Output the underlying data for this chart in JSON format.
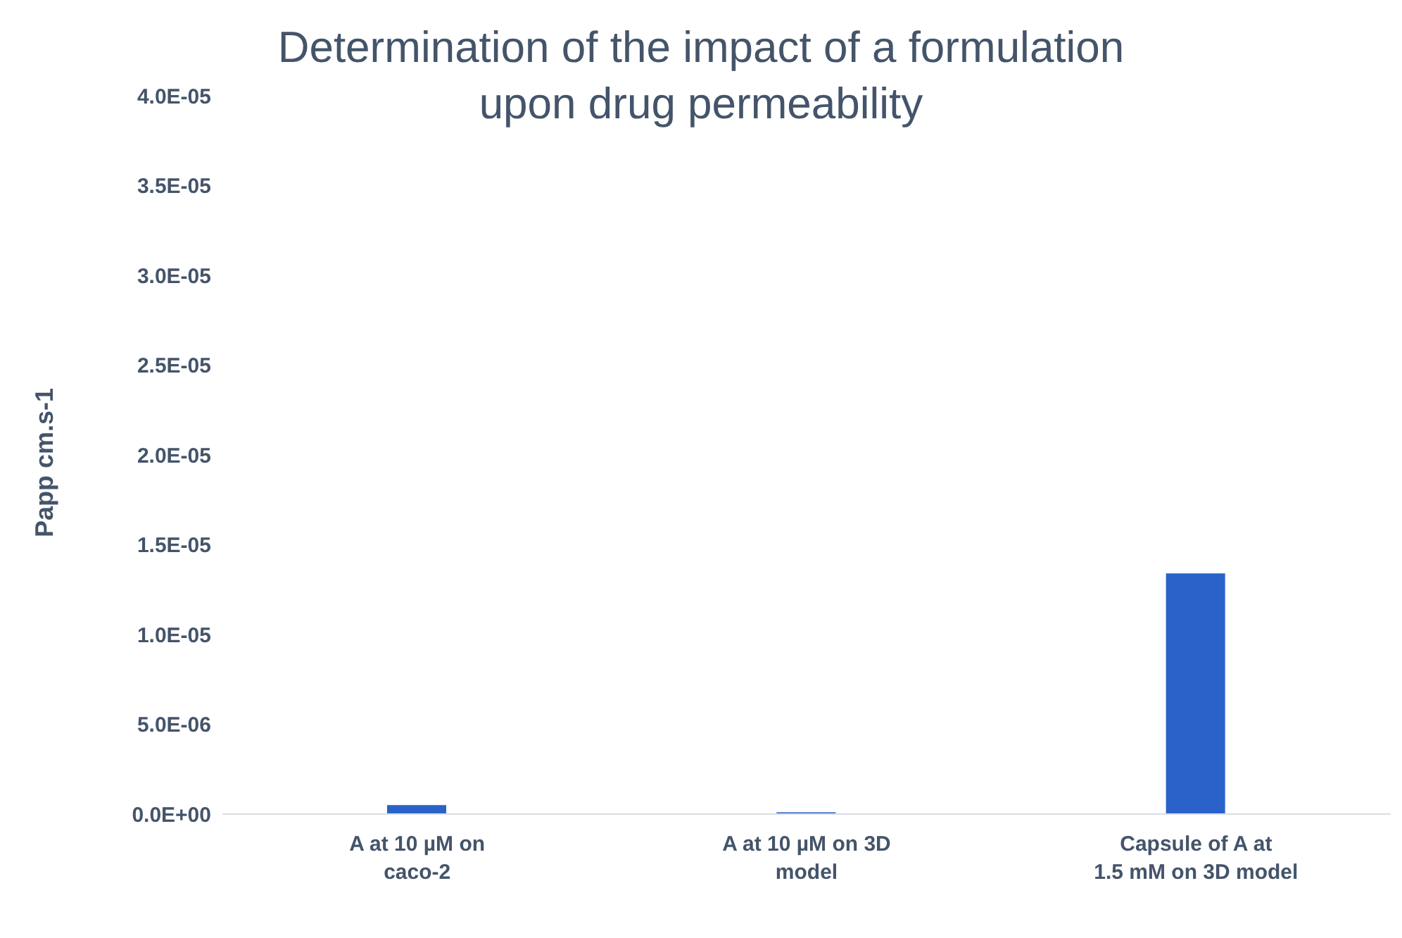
{
  "chart_data": {
    "type": "bar",
    "title": "Determination of the impact of a formulation upon drug permeability",
    "ylabel": "Papp cm.s-1",
    "categories": [
      "A at 10 µM on caco-2",
      "A at 10 µM on 3D model",
      "Capsule of A at 1.5 mM on 3D model"
    ],
    "values": [
      5e-07,
      1e-07,
      1.34e-05
    ],
    "color": "#2a62c9",
    "ylim": [
      0,
      4e-05
    ],
    "yticks": [
      {
        "value": 0,
        "label": "0.0E+00"
      },
      {
        "value": 5e-06,
        "label": "5.0E-06"
      },
      {
        "value": 1e-05,
        "label": "1.0E-05"
      },
      {
        "value": 1.5e-05,
        "label": "1.5E-05"
      },
      {
        "value": 2e-05,
        "label": "2.0E-05"
      },
      {
        "value": 2.5e-05,
        "label": "2.5E-05"
      },
      {
        "value": 3e-05,
        "label": "3.0E-05"
      },
      {
        "value": 3.5e-05,
        "label": "3.5E-05"
      },
      {
        "value": 4e-05,
        "label": "4.0E-05"
      }
    ],
    "grid": false,
    "legend": false
  }
}
